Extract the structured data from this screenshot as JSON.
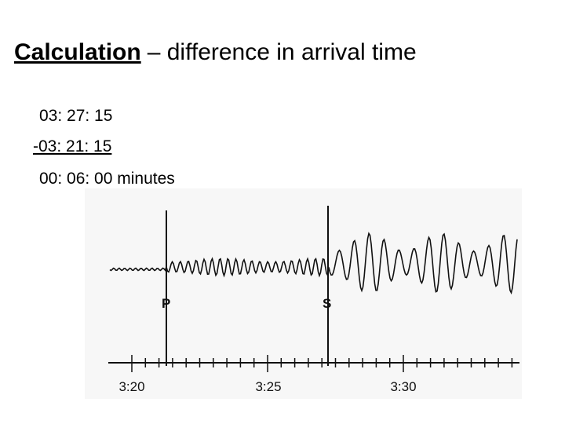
{
  "title": {
    "bold": "Calculation",
    "rest": "– difference in arrival time"
  },
  "calculation": [
    "03: 27: 15",
    "-03: 21: 15",
    "00: 06: 00 minutes"
  ],
  "seismogram": {
    "phases": [
      "P",
      "S"
    ],
    "time_labels": [
      "3:20",
      "3:25",
      "3:30"
    ]
  }
}
